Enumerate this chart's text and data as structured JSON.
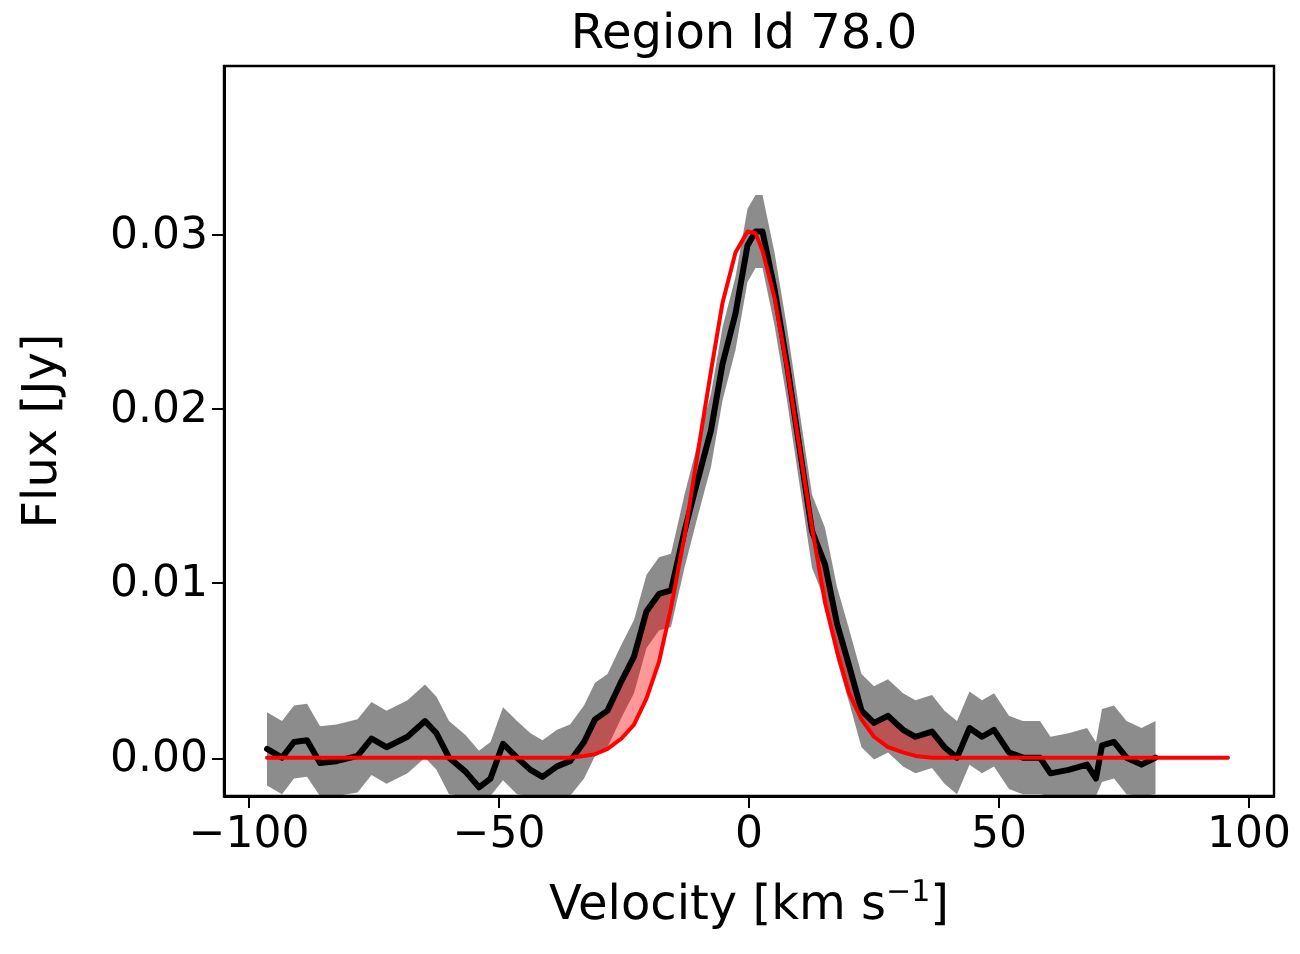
{
  "chart_data": {
    "type": "line",
    "title": "Region Id 78.0",
    "xlabel": "Velocity [km s$^{−1}$]",
    "ylabel": "Flux [Jy]",
    "xlim": [
      -105,
      105
    ],
    "ylim": [
      -0.0022,
      0.0397
    ],
    "xticks": [
      {
        "value": -100,
        "label": "−100"
      },
      {
        "value": -50,
        "label": "−50"
      },
      0,
      50,
      100
    ],
    "yticks": [
      {
        "value": 0,
        "label": "0.00"
      },
      {
        "value": 0.01,
        "label": "0.01"
      },
      {
        "value": 0.02,
        "label": "0.02"
      },
      {
        "value": 0.03,
        "label": "0.03"
      }
    ],
    "marker": "none",
    "line_style": "solid",
    "series": [
      {
        "color": "#000000",
        "x": [
          -96.4,
          -93.4,
          -91,
          -88.4,
          -85.8,
          -82.5,
          -78.3,
          -75.5,
          -72.5,
          -68.3,
          -64.8,
          -62.5,
          -60,
          -56.7,
          -54,
          -51.7,
          -49.2,
          -46.4,
          -43.7,
          -41.3,
          -38.4,
          -35.8,
          -33,
          -30.8,
          -28.3,
          -25.5,
          -23,
          -20.5,
          -18,
          -15.6,
          -12.9,
          -10.3,
          -7.6,
          -5.3,
          -2.7,
          -0.3,
          1.3,
          2.7,
          5.1,
          7.6,
          10.1,
          12.6,
          15.2,
          17.6,
          20,
          22.5,
          25,
          27.8,
          30.8,
          33.3,
          36.6,
          39.1,
          41.6,
          44.1,
          46.6,
          49,
          52,
          54.8,
          58.2,
          60.3,
          63.9,
          67.6,
          69.4,
          70.6,
          73,
          75.5,
          78.5,
          81.3
        ],
        "values": [
          0.0005,
          0,
          0.0009,
          0.001,
          -0.0003,
          -0.0002,
          0.0001,
          0.0011,
          0.0006,
          0.0012,
          0.0021,
          0.0014,
          0,
          -0.0008,
          -0.0017,
          -0.0012,
          0.0008,
          0,
          -0.0007,
          -0.0011,
          -0.0005,
          -0.0002,
          0.0009,
          0.0022,
          0.0027,
          0.0044,
          0.0058,
          0.0084,
          0.0094,
          0.0096,
          0.013,
          0.0159,
          0.0188,
          0.0226,
          0.0255,
          0.0294,
          0.0302,
          0.0302,
          0.0269,
          0.0226,
          0.0178,
          0.013,
          0.0111,
          0.0077,
          0.0053,
          0.0027,
          0.002,
          0.0024,
          0.0016,
          0.0012,
          0.0015,
          0.0006,
          0,
          0.0017,
          0.0012,
          0.0016,
          0.0003,
          0,
          0,
          -0.0009,
          -0.0007,
          -0.0004,
          -0.0012,
          0.0007,
          0.0009,
          0,
          -0.0004,
          0
        ],
        "lower": [
          -0.0016,
          -0.0021,
          -0.0012,
          -0.0011,
          -0.0022,
          -0.0022,
          -0.002,
          -0.001,
          -0.0015,
          -0.0009,
          0,
          -0.0007,
          -0.0021,
          -0.0022,
          -0.0022,
          -0.0022,
          -0.0013,
          -0.0021,
          -0.0022,
          -0.0022,
          -0.0022,
          -0.0022,
          -0.0012,
          0.0001,
          0.0006,
          0.0023,
          0.0037,
          0.0063,
          0.0073,
          0.0075,
          0.0109,
          0.0138,
          0.0167,
          0.0205,
          0.0234,
          0.0273,
          0.0281,
          0.0281,
          0.0248,
          0.0205,
          0.0157,
          0.0109,
          0.009,
          0.0056,
          0.0032,
          0.0006,
          -0.0001,
          0.0003,
          -0.0005,
          -0.0009,
          -0.0006,
          -0.0015,
          -0.0021,
          -0.0004,
          -0.0009,
          -0.0005,
          -0.0018,
          -0.0021,
          -0.0021,
          -0.0022,
          -0.0022,
          -0.0022,
          -0.0022,
          -0.0014,
          -0.0012,
          -0.0021,
          -0.0022,
          -0.0021
        ],
        "upper": [
          0.0026,
          0.0021,
          0.003,
          0.0031,
          0.0018,
          0.0019,
          0.0022,
          0.0032,
          0.0027,
          0.0033,
          0.0042,
          0.0035,
          0.0021,
          0.0013,
          0.0004,
          0.0009,
          0.0029,
          0.0021,
          0.0014,
          0.001,
          0.0016,
          0.0019,
          0.003,
          0.0043,
          0.0048,
          0.0065,
          0.0079,
          0.0105,
          0.0115,
          0.0117,
          0.0151,
          0.018,
          0.0209,
          0.0247,
          0.0276,
          0.0315,
          0.0323,
          0.0323,
          0.029,
          0.0247,
          0.0199,
          0.0151,
          0.0132,
          0.0098,
          0.0074,
          0.0048,
          0.0041,
          0.0045,
          0.0037,
          0.0033,
          0.0036,
          0.0027,
          0.0021,
          0.0038,
          0.0033,
          0.0037,
          0.0024,
          0.0021,
          0.0021,
          0.0012,
          0.0014,
          0.0017,
          0.0009,
          0.0028,
          0.003,
          0.0021,
          0.0017,
          0.0021
        ]
      },
      {
        "color": "#ff0000",
        "x": [
          -96.4,
          -60,
          -40,
          -35.8,
          -33,
          -30.8,
          -28.3,
          -25.5,
          -23,
          -20.5,
          -18,
          -15.6,
          -12.9,
          -10.3,
          -7.6,
          -5.3,
          -2.7,
          -0.3,
          1.3,
          2.7,
          5.1,
          7.6,
          10.1,
          12.6,
          15.2,
          17.6,
          20,
          22.5,
          25,
          27.8,
          30.8,
          33.3,
          36.6,
          40,
          60,
          95.8
        ],
        "values": [
          0,
          0,
          0,
          0,
          0.0001,
          0.0002,
          0.0005,
          0.0011,
          0.0019,
          0.0034,
          0.0055,
          0.0086,
          0.0127,
          0.0174,
          0.0222,
          0.0261,
          0.029,
          0.0302,
          0.0301,
          0.0291,
          0.0264,
          0.0224,
          0.0178,
          0.0132,
          0.0089,
          0.0061,
          0.0037,
          0.0022,
          0.0012,
          0.0006,
          0.0003,
          0.0001,
          0,
          0,
          0,
          0
        ],
        "lower": [
          null,
          null,
          null,
          0,
          0.0001,
          0.0002,
          0.0005,
          0.0011,
          0.0019,
          0.0034,
          0.0055,
          0.0086,
          null,
          null,
          null,
          null,
          null,
          null,
          null,
          null,
          null,
          null,
          null,
          0.0132,
          0.0089,
          0.0061,
          0.0037,
          0.0022,
          0.0012,
          0.0006,
          0.0003,
          0.0001,
          0,
          0,
          null,
          null
        ],
        "upper": [
          null,
          null,
          null,
          0,
          0.0009,
          0.0022,
          0.0027,
          0.0044,
          0.0058,
          0.0084,
          0.0094,
          0.0096,
          null,
          null,
          null,
          null,
          null,
          null,
          null,
          null,
          null,
          null,
          null,
          0.013,
          0.0111,
          0.0077,
          0.0053,
          0.0027,
          0.002,
          0.0024,
          0.0016,
          0.0012,
          0.0015,
          0.0006,
          null,
          null
        ]
      }
    ]
  }
}
